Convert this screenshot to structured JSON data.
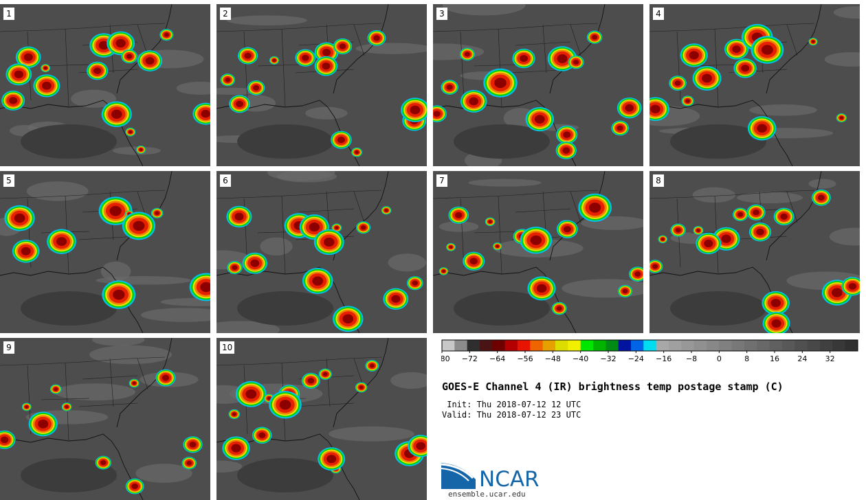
{
  "panels": [
    {
      "label": "1"
    },
    {
      "label": "2"
    },
    {
      "label": "3"
    },
    {
      "label": "4"
    },
    {
      "label": "5"
    },
    {
      "label": "6"
    },
    {
      "label": "7"
    },
    {
      "label": "8"
    },
    {
      "label": "9"
    },
    {
      "label": "10"
    }
  ],
  "colorbar": {
    "tick_labels": [
      "−80",
      "−72",
      "−64",
      "−56",
      "−48",
      "−40",
      "−32",
      "−24",
      "−16",
      "−8",
      "0",
      "8",
      "16",
      "24",
      "32"
    ],
    "tick_values": [
      -80,
      -72,
      -64,
      -56,
      -48,
      -40,
      -32,
      -24,
      -16,
      -8,
      0,
      8,
      16,
      24,
      32
    ],
    "min": -80,
    "max": 40,
    "step": 4,
    "colors": [
      "#c8c8c8",
      "#8c8c8c",
      "#2e2e2e",
      "#4a1414",
      "#6e0000",
      "#b40000",
      "#e61400",
      "#f06400",
      "#e6a000",
      "#dcdc00",
      "#f0f000",
      "#00e600",
      "#00b400",
      "#008c14",
      "#0014a0",
      "#0064e6",
      "#00dcf0",
      "#a8a8a8",
      "#a0a0a0",
      "#989898",
      "#909090",
      "#888888",
      "#808080",
      "#787878",
      "#707070",
      "#686868",
      "#606060",
      "#585858",
      "#505050",
      "#484848",
      "#404040",
      "#383838",
      "#303030"
    ]
  },
  "title": "GOES-E Channel 4 (IR) brightness temp postage stamp (C)",
  "init_line": " Init: Thu 2018-07-12 12 UTC",
  "valid_line": "Valid: Thu 2018-07-12 23 UTC",
  "logo": {
    "name": "NCAR",
    "url": "ensemble.ucar.edu"
  }
}
